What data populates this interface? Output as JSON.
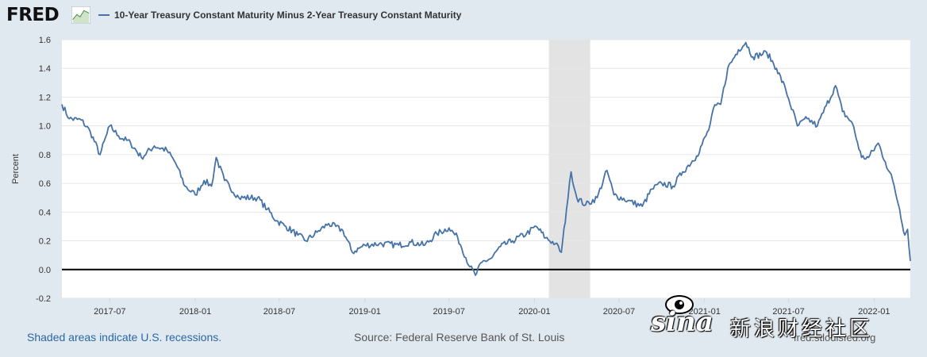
{
  "header": {
    "logo_text": "FRED",
    "legend_label": "10-Year Treasury Constant Maturity Minus 2-Year Treasury Constant Maturity",
    "line_color": "#4572a7"
  },
  "footer": {
    "recession_note": "Shaded areas indicate U.S. recessions.",
    "source": "Source: Federal Reserve Bank of St. Louis",
    "site": "fred.stlouisfed.org"
  },
  "watermark": {
    "brand": "sina",
    "text": "新浪财经社区"
  },
  "chart_data": {
    "type": "line",
    "ylabel": "Percent",
    "ylim": [
      -0.2,
      1.6
    ],
    "yticks": [
      "1.6",
      "1.4",
      "1.2",
      "1.0",
      "0.8",
      "0.6",
      "0.4",
      "0.2",
      "0.0",
      "-0.2"
    ],
    "xlim": [
      "2017-03-20",
      "2022-03-20"
    ],
    "xticks": [
      {
        "label": "2017-07",
        "date": "2017-07-01"
      },
      {
        "label": "2018-01",
        "date": "2018-01-01"
      },
      {
        "label": "2018-07",
        "date": "2018-07-01"
      },
      {
        "label": "2019-01",
        "date": "2019-01-01"
      },
      {
        "label": "2019-07",
        "date": "2019-07-01"
      },
      {
        "label": "2020-01",
        "date": "2020-01-01"
      },
      {
        "label": "2020-07",
        "date": "2020-07-01"
      },
      {
        "label": "2021-01",
        "date": "2021-01-01"
      },
      {
        "label": "2021-07",
        "date": "2021-07-01"
      },
      {
        "label": "2022-01",
        "date": "2022-01-01"
      }
    ],
    "grid": true,
    "zero_line": true,
    "recessions": [
      {
        "start": "2020-02-01",
        "end": "2020-04-30"
      }
    ],
    "series": [
      {
        "color": "#4572a7",
        "points": [
          [
            "2017-03-20",
            1.15
          ],
          [
            "2017-04-05",
            1.05
          ],
          [
            "2017-05-01",
            1.04
          ],
          [
            "2017-05-20",
            0.96
          ],
          [
            "2017-06-10",
            0.8
          ],
          [
            "2017-07-01",
            1.0
          ],
          [
            "2017-07-20",
            0.93
          ],
          [
            "2017-08-15",
            0.88
          ],
          [
            "2017-09-07",
            0.78
          ],
          [
            "2017-10-05",
            0.86
          ],
          [
            "2017-11-01",
            0.83
          ],
          [
            "2017-11-20",
            0.74
          ],
          [
            "2017-12-10",
            0.58
          ],
          [
            "2018-01-01",
            0.52
          ],
          [
            "2018-01-20",
            0.62
          ],
          [
            "2018-02-05",
            0.58
          ],
          [
            "2018-02-15",
            0.78
          ],
          [
            "2018-03-05",
            0.62
          ],
          [
            "2018-04-05",
            0.5
          ],
          [
            "2018-05-15",
            0.5
          ],
          [
            "2018-06-05",
            0.42
          ],
          [
            "2018-06-25",
            0.34
          ],
          [
            "2018-07-15",
            0.3
          ],
          [
            "2018-08-10",
            0.24
          ],
          [
            "2018-08-27",
            0.2
          ],
          [
            "2018-09-20",
            0.26
          ],
          [
            "2018-10-15",
            0.32
          ],
          [
            "2018-11-15",
            0.27
          ],
          [
            "2018-12-05",
            0.12
          ],
          [
            "2019-01-01",
            0.17
          ],
          [
            "2019-02-01",
            0.18
          ],
          [
            "2019-03-15",
            0.17
          ],
          [
            "2019-04-10",
            0.19
          ],
          [
            "2019-05-10",
            0.17
          ],
          [
            "2019-06-05",
            0.25
          ],
          [
            "2019-07-01",
            0.29
          ],
          [
            "2019-07-20",
            0.22
          ],
          [
            "2019-08-15",
            0.02
          ],
          [
            "2019-08-27",
            -0.04
          ],
          [
            "2019-09-10",
            0.05
          ],
          [
            "2019-10-01",
            0.08
          ],
          [
            "2019-10-20",
            0.16
          ],
          [
            "2019-11-15",
            0.2
          ],
          [
            "2019-12-15",
            0.25
          ],
          [
            "2020-01-05",
            0.3
          ],
          [
            "2020-01-25",
            0.22
          ],
          [
            "2020-02-15",
            0.18
          ],
          [
            "2020-02-28",
            0.12
          ],
          [
            "2020-03-10",
            0.42
          ],
          [
            "2020-03-20",
            0.68
          ],
          [
            "2020-04-01",
            0.5
          ],
          [
            "2020-04-20",
            0.45
          ],
          [
            "2020-05-15",
            0.5
          ],
          [
            "2020-06-05",
            0.69
          ],
          [
            "2020-06-20",
            0.52
          ],
          [
            "2020-07-20",
            0.48
          ],
          [
            "2020-08-20",
            0.44
          ],
          [
            "2020-09-10",
            0.56
          ],
          [
            "2020-10-01",
            0.6
          ],
          [
            "2020-10-25",
            0.58
          ],
          [
            "2020-11-15",
            0.68
          ],
          [
            "2020-12-15",
            0.79
          ],
          [
            "2021-01-10",
            0.97
          ],
          [
            "2021-01-20",
            1.12
          ],
          [
            "2021-02-05",
            1.15
          ],
          [
            "2021-02-20",
            1.4
          ],
          [
            "2021-03-15",
            1.53
          ],
          [
            "2021-03-31",
            1.58
          ],
          [
            "2021-04-15",
            1.48
          ],
          [
            "2021-05-15",
            1.51
          ],
          [
            "2021-06-05",
            1.4
          ],
          [
            "2021-06-25",
            1.25
          ],
          [
            "2021-07-20",
            1.0
          ],
          [
            "2021-08-10",
            1.05
          ],
          [
            "2021-09-01",
            1.0
          ],
          [
            "2021-09-20",
            1.14
          ],
          [
            "2021-10-10",
            1.28
          ],
          [
            "2021-10-25",
            1.1
          ],
          [
            "2021-11-15",
            1.02
          ],
          [
            "2021-12-05",
            0.78
          ],
          [
            "2021-12-20",
            0.78
          ],
          [
            "2022-01-10",
            0.88
          ],
          [
            "2022-01-25",
            0.75
          ],
          [
            "2022-02-10",
            0.62
          ],
          [
            "2022-02-25",
            0.42
          ],
          [
            "2022-03-08",
            0.24
          ],
          [
            "2022-03-14",
            0.28
          ],
          [
            "2022-03-20",
            0.06
          ]
        ]
      }
    ]
  }
}
